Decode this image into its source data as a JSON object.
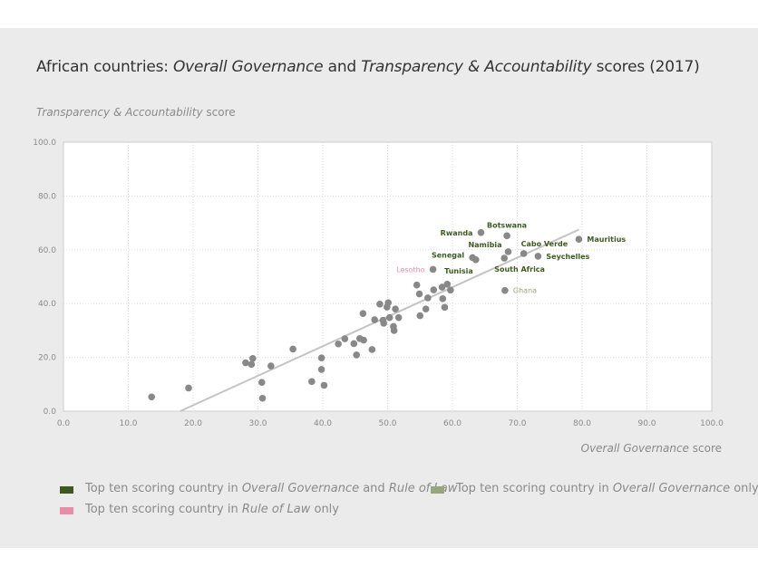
{
  "title": {
    "prefix": "African countries: ",
    "em1": "Overall Governance",
    "mid": " and ",
    "em2": "Transparency & Accountability",
    "suffix": " scores (2017)"
  },
  "axis_labels": {
    "y_em": "Transparency & Accountability",
    "y_rest": " score",
    "x_em": "Overall Governance",
    "x_rest": " score"
  },
  "colors": {
    "dark_green": "#3d5a1e",
    "light_green": "#99a57c",
    "pink": "#e98ba9",
    "point": "#888888",
    "trend": "#c4c4c4",
    "grid": "#dddddd",
    "plot_bg": "#ffffff"
  },
  "legend": [
    {
      "color_key": "dark_green",
      "text1": "Top ten scoring country in ",
      "em1": "Overall Governance",
      "text2": " and ",
      "em2": "Rule of Law",
      "text3": ""
    },
    {
      "color_key": "light_green",
      "text1": "Top ten scoring country in ",
      "em1": "Overall Governance",
      "text2": " only",
      "em2": "",
      "text3": ""
    },
    {
      "color_key": "pink",
      "text1": "Top ten scoring country in ",
      "em1": "Rule of Law",
      "text2": " only",
      "em2": "",
      "text3": ""
    }
  ],
  "chart_data": {
    "type": "scatter",
    "xlim": [
      0,
      100
    ],
    "ylim": [
      0,
      100
    ],
    "x_ticks": [
      "0.0",
      "10.0",
      "20.0",
      "30.0",
      "40.0",
      "50.0",
      "60.0",
      "70.0",
      "80.0",
      "90.0",
      "100.0"
    ],
    "y_ticks": [
      "0.0",
      "20.0",
      "40.0",
      "60.0",
      "80.0",
      "100.0"
    ],
    "grid": true,
    "trendline": {
      "x": [
        18,
        79.5
      ],
      "y": [
        0,
        67.5
      ]
    },
    "labeled_points": [
      {
        "label": "Rwanda",
        "x": 64.4,
        "y": 66.4,
        "group": "dark_green"
      },
      {
        "label": "Botswana",
        "x": 68.4,
        "y": 65.2,
        "group": "dark_green"
      },
      {
        "label": "Mauritius",
        "x": 79.5,
        "y": 63.9,
        "group": "dark_green"
      },
      {
        "label": "Cabo Verde",
        "x": 71.0,
        "y": 58.6,
        "group": "dark_green"
      },
      {
        "label": "Namibia",
        "x": 68.6,
        "y": 59.3,
        "group": "dark_green"
      },
      {
        "label": "Seychelles",
        "x": 73.2,
        "y": 57.6,
        "group": "dark_green"
      },
      {
        "label": "Senegal",
        "x": 63.1,
        "y": 57.1,
        "group": "dark_green"
      },
      {
        "label": "South Africa",
        "x": 68.0,
        "y": 56.9,
        "group": "dark_green"
      },
      {
        "label": "Tunisia",
        "x": 63.6,
        "y": 56.3,
        "group": "dark_green"
      },
      {
        "label": "Lesotho",
        "x": 57.0,
        "y": 52.7,
        "group": "pink"
      },
      {
        "label": "Ghana",
        "x": 68.1,
        "y": 44.9,
        "group": "light_green"
      }
    ],
    "points": [
      [
        13.6,
        5.3
      ],
      [
        19.3,
        8.6
      ],
      [
        28.1,
        18.0
      ],
      [
        29.0,
        17.4
      ],
      [
        29.2,
        19.6
      ],
      [
        30.6,
        10.7
      ],
      [
        30.7,
        4.8
      ],
      [
        32.0,
        16.8
      ],
      [
        35.4,
        23.1
      ],
      [
        38.3,
        11.0
      ],
      [
        39.8,
        19.8
      ],
      [
        39.8,
        15.5
      ],
      [
        40.2,
        9.6
      ],
      [
        42.4,
        25.0
      ],
      [
        43.4,
        26.9
      ],
      [
        44.8,
        25.1
      ],
      [
        45.2,
        20.9
      ],
      [
        45.7,
        27.0
      ],
      [
        46.2,
        36.3
      ],
      [
        46.3,
        26.4
      ],
      [
        47.6,
        22.9
      ],
      [
        48.0,
        34.0
      ],
      [
        48.8,
        39.8
      ],
      [
        49.3,
        33.8
      ],
      [
        49.4,
        32.7
      ],
      [
        49.9,
        38.7
      ],
      [
        50.1,
        40.3
      ],
      [
        50.3,
        34.8
      ],
      [
        50.9,
        31.5
      ],
      [
        51.0,
        30.0
      ],
      [
        51.2,
        38.0
      ],
      [
        51.7,
        34.8
      ],
      [
        54.5,
        46.9
      ],
      [
        54.9,
        43.6
      ],
      [
        55.0,
        35.5
      ],
      [
        55.9,
        38.0
      ],
      [
        56.2,
        42.1
      ],
      [
        57.1,
        45.1
      ],
      [
        58.4,
        46.1
      ],
      [
        58.5,
        41.8
      ],
      [
        58.8,
        38.6
      ],
      [
        59.2,
        47.2
      ],
      [
        59.7,
        45.0
      ]
    ]
  }
}
